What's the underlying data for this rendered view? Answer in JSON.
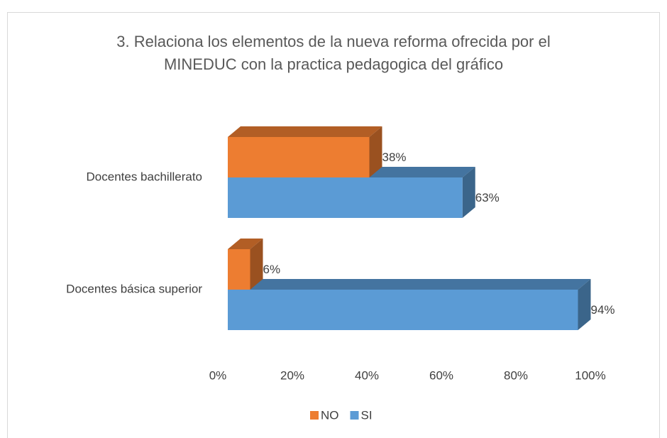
{
  "chart_data": {
    "type": "bar3d_horizontal",
    "title": [
      "3. Relaciona los elementos de la nueva reforma ofrecida por el",
      "MINEDUC con la practica pedagogica  del gráfico"
    ],
    "categories": [
      "Docentes bachillerato",
      "Docentes básica superior"
    ],
    "series": [
      {
        "name": "NO",
        "color": "#ed7d31",
        "values": [
          38,
          6
        ],
        "value_labels": [
          "38%",
          "6%"
        ]
      },
      {
        "name": "SI",
        "color": "#5b9bd5",
        "values": [
          63,
          94
        ],
        "value_labels": [
          "63%",
          "94%"
        ]
      }
    ],
    "xlim": [
      0,
      100
    ],
    "xticks": [
      {
        "value": 0,
        "label": "0%"
      },
      {
        "value": 20,
        "label": "20%"
      },
      {
        "value": 40,
        "label": "40%"
      },
      {
        "value": 60,
        "label": "60%"
      },
      {
        "value": 80,
        "label": "80%"
      },
      {
        "value": 100,
        "label": "100%"
      }
    ],
    "legend": "bottom"
  }
}
